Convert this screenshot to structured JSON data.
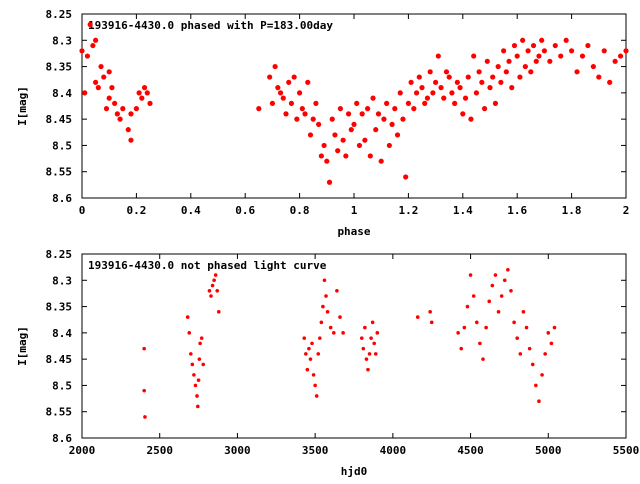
{
  "chart_data": [
    {
      "type": "scatter",
      "title": "193916-4430.0 phased with P=183.00day",
      "xlabel": "phase",
      "ylabel": "I[mag]",
      "xlim": [
        0,
        2
      ],
      "ylim": [
        8.6,
        8.25
      ],
      "y_inverted": true,
      "xticks": [
        0,
        0.2,
        0.4,
        0.6,
        0.8,
        1,
        1.2,
        1.4,
        1.6,
        1.8,
        2
      ],
      "yticks": [
        8.25,
        8.3,
        8.35,
        8.4,
        8.45,
        8.5,
        8.55,
        8.6
      ],
      "xtick_labels": [
        "0",
        "0.2",
        "0.4",
        "0.6",
        "0.8",
        "1",
        "1.2",
        "1.4",
        "1.6",
        "1.8",
        "2"
      ],
      "ytick_labels": [
        "8.25",
        "8.3",
        "8.35",
        "8.4",
        "8.45",
        "8.5",
        "8.55",
        "8.6"
      ],
      "grid": false,
      "marker_color": "#ff0000",
      "series": [
        {
          "x": [
            0.0,
            0.01,
            0.02,
            0.03,
            0.04,
            0.05,
            0.05,
            0.06,
            0.07,
            0.08,
            0.09,
            0.1,
            0.1,
            0.11,
            0.12,
            0.13,
            0.14,
            0.15,
            0.17,
            0.18,
            0.18,
            0.2,
            0.21,
            0.22,
            0.23,
            0.24,
            0.25,
            0.65,
            0.69,
            0.7,
            0.71,
            0.72,
            0.73,
            0.74,
            0.75,
            0.76,
            0.77,
            0.78,
            0.79,
            0.8,
            0.81,
            0.82,
            0.83,
            0.84,
            0.85,
            0.86,
            0.87,
            0.88,
            0.89,
            0.9,
            0.91,
            0.92,
            0.93,
            0.94,
            0.95,
            0.96,
            0.97,
            0.98,
            0.99,
            1.0,
            1.01,
            1.02,
            1.03,
            1.04,
            1.05,
            1.06,
            1.07,
            1.08,
            1.09,
            1.1,
            1.11,
            1.12,
            1.13,
            1.14,
            1.15,
            1.16,
            1.17,
            1.18,
            1.19,
            1.2,
            1.21,
            1.22,
            1.23,
            1.24,
            1.25,
            1.26,
            1.27,
            1.28,
            1.29,
            1.3,
            1.31,
            1.32,
            1.33,
            1.34,
            1.35,
            1.36,
            1.37,
            1.38,
            1.39,
            1.4,
            1.41,
            1.42,
            1.43,
            1.44,
            1.45,
            1.46,
            1.47,
            1.48,
            1.49,
            1.5,
            1.51,
            1.52,
            1.53,
            1.54,
            1.55,
            1.56,
            1.57,
            1.58,
            1.59,
            1.6,
            1.61,
            1.62,
            1.63,
            1.64,
            1.65,
            1.66,
            1.67,
            1.68,
            1.69,
            1.7,
            1.72,
            1.74,
            1.76,
            1.78,
            1.8,
            1.82,
            1.84,
            1.86,
            1.88,
            1.9,
            1.92,
            1.94,
            1.96,
            1.98,
            2.0
          ],
          "y": [
            8.32,
            8.4,
            8.33,
            8.27,
            8.31,
            8.3,
            8.38,
            8.39,
            8.35,
            8.37,
            8.43,
            8.36,
            8.41,
            8.39,
            8.42,
            8.44,
            8.45,
            8.43,
            8.47,
            8.49,
            8.44,
            8.43,
            8.4,
            8.41,
            8.39,
            8.4,
            8.42,
            8.43,
            8.37,
            8.42,
            8.35,
            8.39,
            8.4,
            8.41,
            8.44,
            8.38,
            8.42,
            8.37,
            8.45,
            8.4,
            8.43,
            8.44,
            8.38,
            8.48,
            8.45,
            8.42,
            8.46,
            8.52,
            8.5,
            8.53,
            8.57,
            8.45,
            8.48,
            8.51,
            8.43,
            8.49,
            8.52,
            8.44,
            8.47,
            8.46,
            8.42,
            8.5,
            8.44,
            8.49,
            8.43,
            8.52,
            8.41,
            8.47,
            8.44,
            8.53,
            8.45,
            8.42,
            8.5,
            8.46,
            8.43,
            8.48,
            8.4,
            8.45,
            8.56,
            8.42,
            8.38,
            8.43,
            8.4,
            8.37,
            8.39,
            8.42,
            8.41,
            8.36,
            8.4,
            8.38,
            8.33,
            8.39,
            8.41,
            8.36,
            8.37,
            8.4,
            8.42,
            8.38,
            8.39,
            8.44,
            8.41,
            8.37,
            8.45,
            8.33,
            8.4,
            8.36,
            8.38,
            8.43,
            8.34,
            8.39,
            8.37,
            8.42,
            8.35,
            8.38,
            8.32,
            8.36,
            8.34,
            8.39,
            8.31,
            8.33,
            8.37,
            8.3,
            8.35,
            8.32,
            8.36,
            8.31,
            8.34,
            8.33,
            8.3,
            8.32,
            8.34,
            8.31,
            8.33,
            8.3,
            8.32,
            8.36,
            8.33,
            8.31,
            8.35,
            8.37,
            8.32,
            8.38,
            8.34,
            8.33,
            8.32
          ]
        }
      ]
    },
    {
      "type": "scatter",
      "title": "193916-4430.0 not phased light curve",
      "xlabel": "hjd0",
      "ylabel": "I[mag]",
      "xlim": [
        2000,
        5500
      ],
      "ylim": [
        8.6,
        8.25
      ],
      "y_inverted": true,
      "xticks": [
        2000,
        2500,
        3000,
        3500,
        4000,
        4500,
        5000,
        5500
      ],
      "yticks": [
        8.25,
        8.3,
        8.35,
        8.4,
        8.45,
        8.5,
        8.55,
        8.6
      ],
      "xtick_labels": [
        "2000",
        "2500",
        "3000",
        "3500",
        "4000",
        "4500",
        "5000",
        "5500"
      ],
      "ytick_labels": [
        "8.25",
        "8.3",
        "8.35",
        "8.4",
        "8.45",
        "8.5",
        "8.55",
        "8.6"
      ],
      "grid": false,
      "marker_color": "#ff0000",
      "series": [
        {
          "x": [
            2400,
            2400,
            2405,
            2680,
            2690,
            2700,
            2710,
            2720,
            2730,
            2740,
            2745,
            2750,
            2755,
            2760,
            2770,
            2780,
            2820,
            2830,
            2840,
            2850,
            2860,
            2870,
            2880,
            3430,
            3440,
            3450,
            3460,
            3470,
            3480,
            3490,
            3500,
            3510,
            3520,
            3530,
            3540,
            3550,
            3560,
            3570,
            3580,
            3600,
            3620,
            3640,
            3660,
            3680,
            3800,
            3810,
            3820,
            3830,
            3840,
            3850,
            3860,
            3870,
            3880,
            3890,
            3900,
            4160,
            4240,
            4250,
            4420,
            4440,
            4460,
            4480,
            4500,
            4520,
            4540,
            4560,
            4580,
            4600,
            4620,
            4640,
            4660,
            4680,
            4700,
            4720,
            4740,
            4760,
            4780,
            4800,
            4820,
            4840,
            4860,
            4880,
            4900,
            4920,
            4940,
            4960,
            4980,
            5000,
            5020,
            5040
          ],
          "y": [
            8.43,
            8.51,
            8.56,
            8.37,
            8.4,
            8.44,
            8.46,
            8.48,
            8.5,
            8.52,
            8.54,
            8.49,
            8.45,
            8.42,
            8.41,
            8.46,
            8.32,
            8.33,
            8.31,
            8.3,
            8.29,
            8.32,
            8.36,
            8.41,
            8.44,
            8.47,
            8.43,
            8.45,
            8.42,
            8.48,
            8.5,
            8.52,
            8.44,
            8.41,
            8.38,
            8.35,
            8.3,
            8.33,
            8.36,
            8.39,
            8.4,
            8.32,
            8.37,
            8.4,
            8.41,
            8.43,
            8.39,
            8.45,
            8.47,
            8.44,
            8.41,
            8.38,
            8.42,
            8.44,
            8.4,
            8.37,
            8.36,
            8.38,
            8.4,
            8.43,
            8.39,
            8.35,
            8.29,
            8.33,
            8.38,
            8.42,
            8.45,
            8.39,
            8.34,
            8.31,
            8.29,
            8.36,
            8.33,
            8.3,
            8.28,
            8.32,
            8.38,
            8.41,
            8.44,
            8.36,
            8.39,
            8.43,
            8.46,
            8.5,
            8.53,
            8.48,
            8.44,
            8.4,
            8.42,
            8.39
          ]
        }
      ]
    }
  ]
}
